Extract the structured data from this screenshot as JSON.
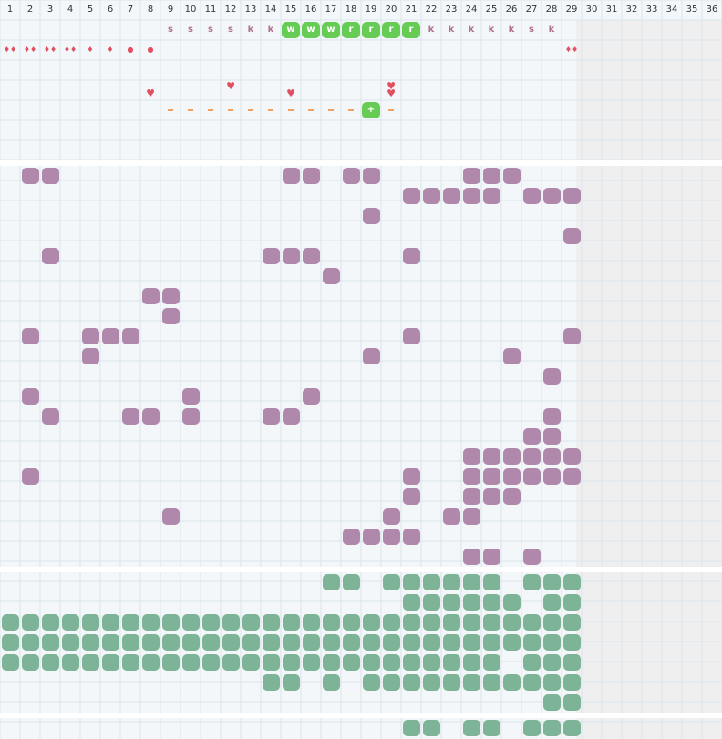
{
  "columns": [
    "1",
    "2",
    "3",
    "4",
    "5",
    "6",
    "7",
    "8",
    "9",
    "10",
    "11",
    "12",
    "13",
    "14",
    "15",
    "16",
    "17",
    "18",
    "19",
    "20",
    "21",
    "22",
    "23",
    "24",
    "25",
    "26",
    "27",
    "28",
    "29",
    "30",
    "31",
    "32",
    "33",
    "34",
    "35",
    "36"
  ],
  "grey_from_col": 29,
  "colors": {
    "purple": "#b088ac",
    "green": "#7db396",
    "bright_green": "#66cc55",
    "red": "#e05060",
    "orange": "#f0a060",
    "letter": "#b07090",
    "grid": "#d8e6ec",
    "bg": "#f3f7f9"
  },
  "top_letters": [
    {
      "col": 9,
      "text": "s"
    },
    {
      "col": 10,
      "text": "s"
    },
    {
      "col": 11,
      "text": "s"
    },
    {
      "col": 12,
      "text": "s"
    },
    {
      "col": 13,
      "text": "k"
    },
    {
      "col": 14,
      "text": "k"
    },
    {
      "col": 15,
      "text": "w"
    },
    {
      "col": 16,
      "text": "w"
    },
    {
      "col": 17,
      "text": "w"
    },
    {
      "col": 18,
      "text": "r"
    },
    {
      "col": 19,
      "text": "r"
    },
    {
      "col": 20,
      "text": "r"
    },
    {
      "col": 21,
      "text": "r"
    },
    {
      "col": 22,
      "text": "k"
    },
    {
      "col": 23,
      "text": "k"
    },
    {
      "col": 24,
      "text": "k"
    },
    {
      "col": 25,
      "text": "k"
    },
    {
      "col": 26,
      "text": "k"
    },
    {
      "col": 27,
      "text": "s"
    },
    {
      "col": 28,
      "text": "k"
    }
  ],
  "highlighted_cols": [
    15,
    16,
    17,
    18,
    19,
    20,
    21
  ],
  "drops_row": [
    {
      "col": 1,
      "text": "♦♦"
    },
    {
      "col": 2,
      "text": "♦♦"
    },
    {
      "col": 3,
      "text": "♦♦"
    },
    {
      "col": 4,
      "text": "♦♦"
    },
    {
      "col": 5,
      "text": "♦"
    },
    {
      "col": 6,
      "text": "♦"
    },
    {
      "col": 7,
      "text": "●"
    },
    {
      "col": 8,
      "text": "●"
    },
    {
      "col": 29,
      "text": "♦♦"
    }
  ],
  "hearts": [
    {
      "col": 8,
      "row": 4
    },
    {
      "col": 12,
      "row": 3
    },
    {
      "col": 15,
      "row": 4
    },
    {
      "col": 20,
      "row": 3
    },
    {
      "col": 20,
      "row": 4
    }
  ],
  "dash_cols": [
    9,
    10,
    11,
    12,
    13,
    14,
    15,
    16,
    17,
    18,
    20
  ],
  "plus_cell": {
    "col": 19,
    "text": "+"
  },
  "purple_cells": [
    [
      0,
      [
        2,
        3,
        15,
        16,
        18,
        19,
        24,
        25,
        26
      ]
    ],
    [
      1,
      [
        21,
        22,
        23,
        24,
        25,
        27,
        28,
        29
      ]
    ],
    [
      2,
      [
        19
      ]
    ],
    [
      3,
      [
        29
      ]
    ],
    [
      4,
      [
        3,
        14,
        15,
        16,
        21
      ]
    ],
    [
      5,
      [
        17
      ]
    ],
    [
      6,
      [
        8,
        9
      ]
    ],
    [
      7,
      [
        9
      ]
    ],
    [
      8,
      [
        2,
        5,
        6,
        7,
        21,
        29
      ]
    ],
    [
      9,
      [
        5,
        19,
        26
      ]
    ],
    [
      10,
      [
        28
      ]
    ],
    [
      11,
      [
        2,
        10,
        16
      ]
    ],
    [
      12,
      [
        3,
        7,
        8,
        10,
        14,
        15,
        28
      ]
    ],
    [
      13,
      [
        27,
        28
      ]
    ],
    [
      14,
      [
        24,
        25,
        26,
        27,
        28,
        29
      ]
    ],
    [
      15,
      [
        2,
        21,
        24,
        25,
        26,
        27,
        28,
        29
      ]
    ],
    [
      16,
      [
        21,
        24,
        25,
        26
      ]
    ],
    [
      17,
      [
        9,
        20,
        23,
        24
      ]
    ],
    [
      18,
      [
        18,
        19,
        20,
        21
      ]
    ],
    [
      19,
      [
        24,
        25,
        27
      ]
    ]
  ],
  "green_cells": [
    [
      0,
      [
        17,
        18,
        20,
        21,
        22,
        23,
        24,
        25,
        27,
        28,
        29
      ]
    ],
    [
      1,
      [
        21,
        22,
        23,
        24,
        25,
        26,
        28,
        29
      ]
    ],
    [
      2,
      [
        1,
        2,
        3,
        4,
        5,
        6,
        7,
        8,
        9,
        10,
        11,
        12,
        13,
        14,
        15,
        16,
        17,
        18,
        19,
        20,
        21,
        22,
        23,
        24,
        25,
        26,
        27,
        28,
        29
      ]
    ],
    [
      3,
      [
        1,
        2,
        3,
        4,
        5,
        6,
        7,
        8,
        9,
        10,
        11,
        12,
        13,
        14,
        15,
        16,
        17,
        18,
        19,
        20,
        21,
        22,
        23,
        24,
        25,
        26,
        27,
        28,
        29
      ]
    ],
    [
      4,
      [
        1,
        2,
        3,
        4,
        5,
        6,
        7,
        8,
        9,
        10,
        11,
        12,
        13,
        14,
        15,
        16,
        17,
        18,
        19,
        20,
        21,
        22,
        23,
        24,
        25,
        27,
        28,
        29
      ]
    ],
    [
      5,
      [
        14,
        15,
        17,
        19,
        20,
        21,
        22,
        23,
        24,
        25,
        26,
        27,
        28,
        29
      ]
    ],
    [
      6,
      [
        28,
        29
      ]
    ]
  ],
  "bottom_green": [
    21,
    22,
    24,
    25,
    27,
    28,
    29
  ]
}
